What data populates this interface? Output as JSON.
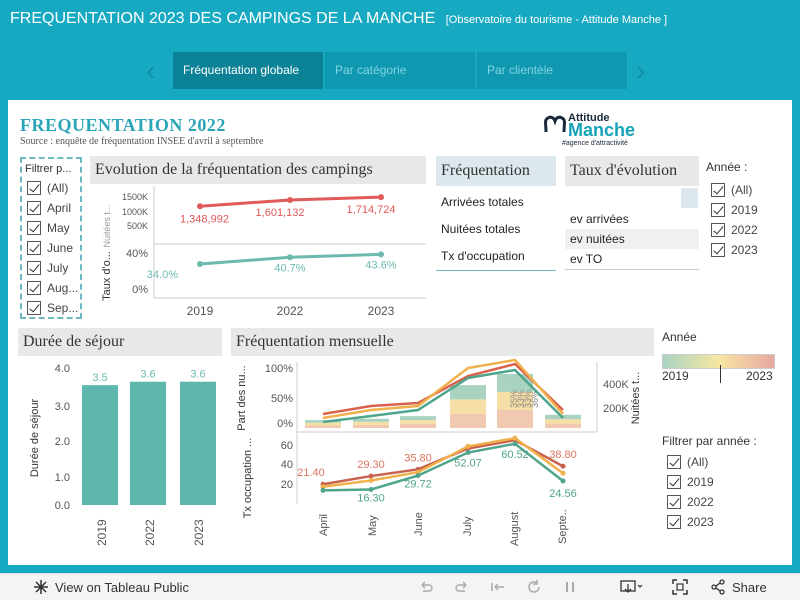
{
  "header": {
    "title": "FREQUENTATION 2023 DES CAMPINGS DE LA MANCHE",
    "subtitle": "[Observatoire du tourisme  - Attitude Manche ]"
  },
  "tabs": [
    {
      "label": "Fréquentation globale",
      "active": true
    },
    {
      "label": "Par catégorie",
      "active": false
    },
    {
      "label": "Par clientèle",
      "active": false
    }
  ],
  "dashboard": {
    "title": "FREQUENTATION  2022",
    "source": "Source : enquête de fréquentation INSEE d'avril à septembre",
    "logo": {
      "line1": "Attitude",
      "line2": "Manche",
      "tagline": "#agence d'attractivité"
    }
  },
  "month_filter": {
    "title": "Filtrer p...",
    "items": [
      "(All)",
      "April",
      "May",
      "June",
      "July",
      "Aug...",
      "Sep..."
    ]
  },
  "evolution": {
    "title": "Evolution de la fréquentation des campings",
    "nuitees_axis": "Nuitées t...",
    "taux_axis": "Taux d'o...",
    "years": [
      "2019",
      "2022",
      "2023"
    ],
    "nuitees": [
      1348992,
      1601132,
      1714724
    ],
    "nuitees_labels": [
      "1,348,992",
      "1,601,132",
      "1,714,724"
    ],
    "nuitees_ticks": [
      "1500K",
      "1000K",
      "500K"
    ],
    "taux": [
      34.0,
      40.7,
      43.6
    ],
    "taux_labels": [
      "34.0%",
      "40.7%",
      "43.6%"
    ],
    "taux_ticks": [
      "40%",
      "20%",
      "0%"
    ]
  },
  "frequentation": {
    "title": "Fréquentation",
    "rows": [
      "Arrivées totales",
      "Nuitées totales",
      "Tx d'occupation"
    ]
  },
  "taux_evolution": {
    "title": "Taux d'évolution",
    "rows": [
      "ev arrivées",
      "ev nuitées",
      "ev TO"
    ]
  },
  "annee_filter": {
    "title": "Année :",
    "items": [
      "(All)",
      "2019",
      "2022",
      "2023"
    ]
  },
  "duree": {
    "title": "Durée de séjour",
    "ylabel": "Durée de séjour",
    "years": [
      "2019",
      "2022",
      "2023"
    ],
    "values": [
      3.5,
      3.6,
      3.6
    ],
    "labels": [
      "3.5",
      "3.6",
      "3.6"
    ],
    "ticks": [
      "4.0",
      "3.0",
      "2.0",
      "1.0",
      "0.0"
    ]
  },
  "mensuelle": {
    "title": "Fréquentation mensuelle",
    "part_axis": "Part des nu...",
    "part_ticks": [
      "100%",
      "50%",
      "0%"
    ],
    "nuitees_axis": "Nuitées t...",
    "nuitees_ticks": [
      "400K",
      "200K"
    ],
    "tx_axis": "Tx occupation ...",
    "tx_ticks": [
      "60",
      "40",
      "20"
    ],
    "months": [
      "April",
      "May",
      "June",
      "July",
      "August",
      "Septe.."
    ],
    "bar_labels": [
      "35%",
      "33%",
      "33%",
      "36%"
    ],
    "tx_2019_labels": [
      "21.40",
      "29.30",
      "35.80",
      "",
      "",
      "38.80"
    ],
    "tx_2023_labels": [
      "",
      "16.30",
      "29.72",
      "52.07",
      "60.52",
      "24.56"
    ],
    "tx_2019": [
      21.4,
      29.3,
      35.8,
      56.0,
      64.0,
      38.8
    ],
    "tx_2022": [
      19.0,
      25.0,
      33.0,
      58.0,
      66.0,
      32.0
    ],
    "tx_2023": [
      15.5,
      16.3,
      29.72,
      52.07,
      60.52,
      24.56
    ]
  },
  "legend": {
    "title": "Année",
    "min": "2019",
    "max": "2023"
  },
  "year_filter2": {
    "title": "Filtrer par année :",
    "items": [
      "(All)",
      "2019",
      "2022",
      "2023"
    ]
  },
  "footer": {
    "view_label": "View on Tableau Public",
    "share_label": "Share"
  },
  "colors": {
    "teal": "#18a9c2",
    "red_line": "#e05a5a",
    "green_line": "#6cb9b0",
    "bar": "#5fb6ac"
  }
}
